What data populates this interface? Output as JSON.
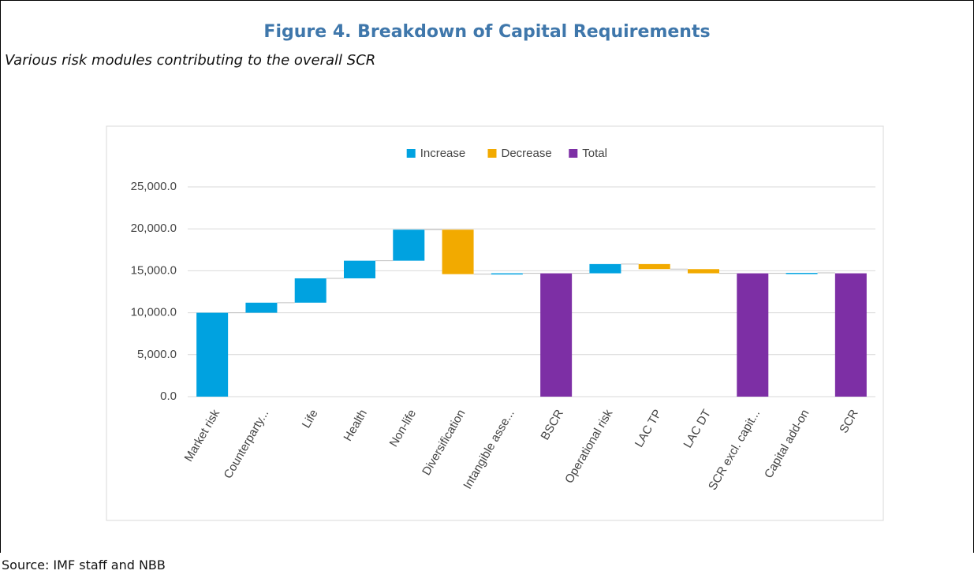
{
  "title": "Figure 4. Breakdown of Capital Requirements",
  "subtitle": "Various risk modules contributing to the overall SCR",
  "source": "Source: IMF staff and NBB",
  "chart_data": {
    "type": "waterfall",
    "categories": [
      "Market risk",
      "Counterparty...",
      "Life",
      "Health",
      "Non-life",
      "Diversification",
      "Intangible asse...",
      "BSCR",
      "Operational risk",
      "LAC TP",
      "LAC DT",
      "SCR excl. capit...",
      "Capital add-on",
      "SCR"
    ],
    "values": [
      10000,
      1200,
      2900,
      2100,
      3700,
      -5300,
      100,
      14700,
      1100,
      -600,
      -500,
      14700,
      50,
      14700
    ],
    "is_total": [
      false,
      false,
      false,
      false,
      false,
      false,
      false,
      true,
      false,
      false,
      false,
      true,
      false,
      true
    ],
    "legend": [
      {
        "name": "Increase",
        "color": "#00a2e0"
      },
      {
        "name": "Decrease",
        "color": "#f2aa00"
      },
      {
        "name": "Total",
        "color": "#7d2fa5"
      }
    ],
    "legend_position": "top",
    "ylim": [
      0,
      25000
    ],
    "yticks": [
      {
        "value": 0,
        "label": "0.0"
      },
      {
        "value": 5000,
        "label": "5,000.0"
      },
      {
        "value": 10000,
        "label": "10,000.0"
      },
      {
        "value": 15000,
        "label": "15,000.0"
      },
      {
        "value": 20000,
        "label": "20,000.0"
      },
      {
        "value": 25000,
        "label": "25,000.0"
      }
    ],
    "grid": true
  }
}
